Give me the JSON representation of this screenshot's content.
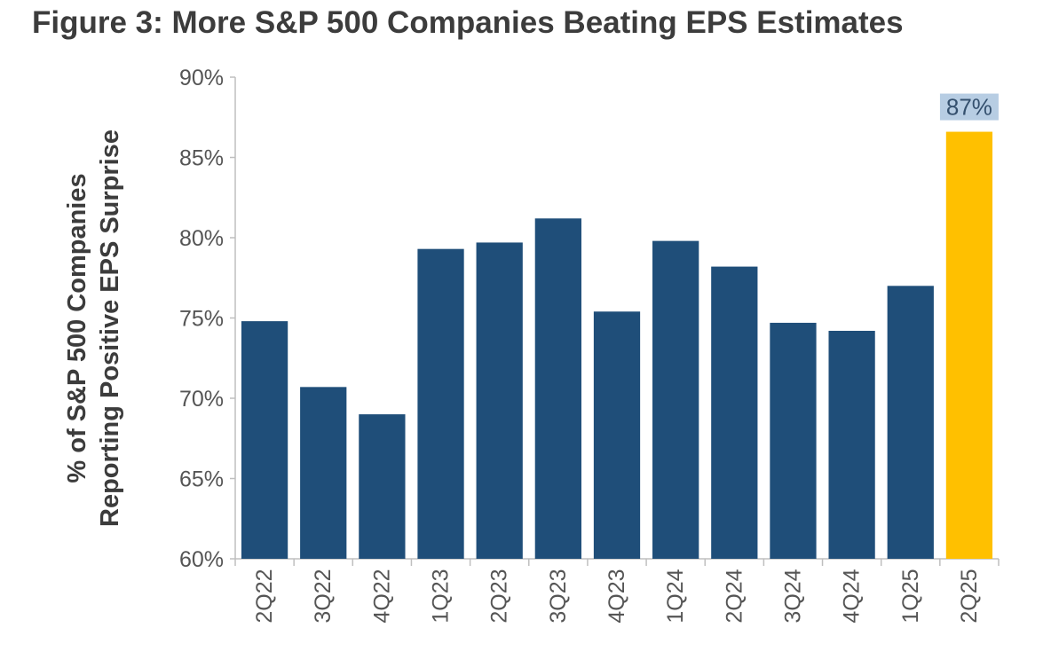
{
  "chart_data": {
    "type": "bar",
    "title": "Figure 3: More S&P 500 Companies Beating EPS Estimates",
    "ylabel": [
      "% of S&P 500 Companies",
      "Reporting Positive EPS Surprise"
    ],
    "categories": [
      "2Q22",
      "3Q22",
      "4Q22",
      "1Q23",
      "2Q23",
      "3Q23",
      "4Q23",
      "1Q24",
      "2Q24",
      "3Q24",
      "4Q24",
      "1Q25",
      "2Q25"
    ],
    "values": [
      74.8,
      70.7,
      69.0,
      79.3,
      79.7,
      81.2,
      75.4,
      79.8,
      78.2,
      74.7,
      74.2,
      77.0,
      86.6
    ],
    "y_ticks": [
      "60%",
      "65%",
      "70%",
      "75%",
      "80%",
      "85%",
      "90%"
    ],
    "ylim": [
      60,
      90
    ],
    "grid": false,
    "data_labels": [
      {
        "category": "2Q25",
        "text": "87%"
      }
    ],
    "colors": {
      "default_bar": "#1f4e79",
      "highlight_bar": "#ffc000",
      "highlight_category": "2Q25",
      "label_bg": "#b7cde3",
      "axis": "#bfbfbf"
    }
  }
}
